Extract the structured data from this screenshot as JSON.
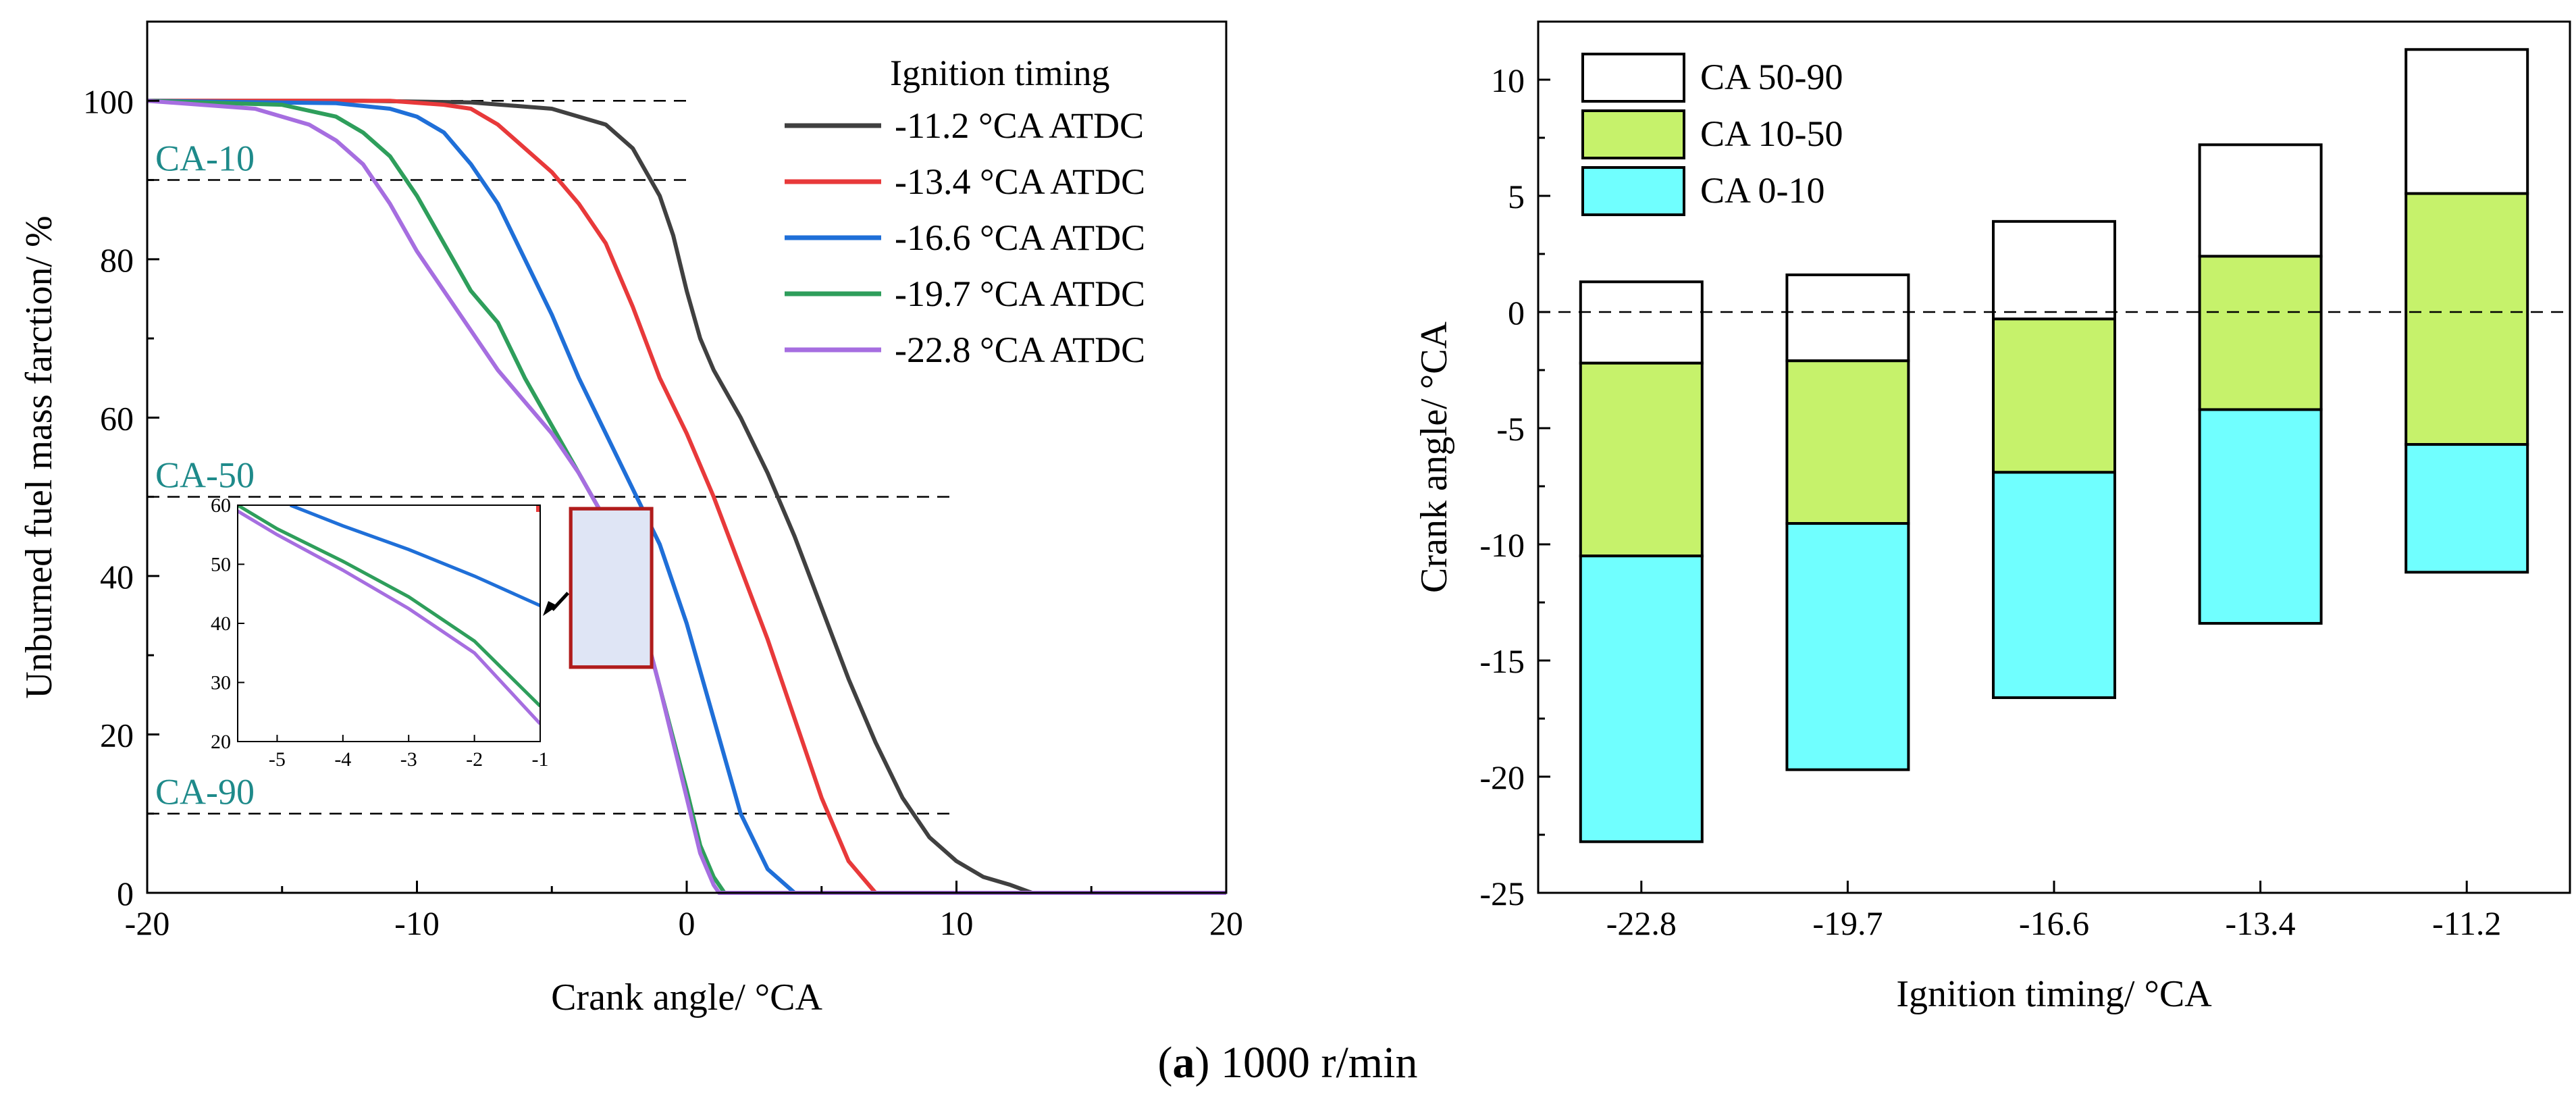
{
  "caption": {
    "label": "a",
    "text": " 1000 r/min"
  },
  "colors": {
    "s11_2": "#404040",
    "s13_4": "#e8393a",
    "s16_6": "#1f6fd8",
    "s19_7": "#2e9e5b",
    "s22_8": "#a66ee0",
    "annot": "#1e8a8a",
    "zoombox": "#b01c1c",
    "zoomfill": "#dfe5f5",
    "band_90": "#ffffff",
    "band_50": "#c6f26b",
    "band_10": "#70ffff"
  },
  "chart_data": [
    {
      "type": "line",
      "title": "",
      "xlabel": "Crank angle/ °CA",
      "ylabel": "Unburned fuel mass farction/ %",
      "xlim": [
        -20,
        20
      ],
      "ylim": [
        0,
        110
      ],
      "xticks": [
        -20,
        -10,
        0,
        10,
        20
      ],
      "yticks": [
        0,
        20,
        40,
        60,
        80,
        100
      ],
      "legend_title": "Ignition timing",
      "legend_position": "top-right",
      "reference_lines": [
        {
          "label": "",
          "y": 100
        },
        {
          "label": "CA-10",
          "y": 90
        },
        {
          "label": "CA-50",
          "y": 50
        },
        {
          "label": "CA-90",
          "y": 10
        }
      ],
      "series": [
        {
          "name": "-11.2 °CA ATDC",
          "color_key": "s11_2",
          "x": [
            -20,
            -12,
            -8,
            -5,
            -4,
            -3,
            -2,
            -1,
            -0.5,
            0,
            0.5,
            1,
            2,
            3,
            4,
            5,
            6,
            7,
            8,
            9,
            10,
            11,
            12,
            12.8,
            20
          ],
          "y": [
            100,
            100,
            99.8,
            99,
            98,
            97,
            94,
            88,
            83,
            76,
            70,
            66,
            60,
            53,
            45,
            36,
            27,
            19,
            12,
            7,
            4,
            2,
            1,
            0,
            0
          ]
        },
        {
          "name": "-13.4 °CA ATDC",
          "color_key": "s13_4",
          "x": [
            -20,
            -11,
            -9,
            -8,
            -7,
            -6,
            -5,
            -4,
            -3,
            -2,
            -1,
            0,
            1,
            2,
            3,
            4,
            5,
            6,
            7,
            20
          ],
          "y": [
            100,
            100,
            99.5,
            99,
            97,
            94,
            91,
            87,
            82,
            74,
            65,
            58,
            50,
            41,
            32,
            22,
            12,
            4,
            0,
            0
          ]
        },
        {
          "name": "-16.6 °CA ATDC",
          "color_key": "s16_6",
          "x": [
            -20,
            -13,
            -11,
            -10,
            -9,
            -8,
            -7,
            -6,
            -5,
            -4,
            -3,
            -2,
            -1,
            0,
            1,
            2,
            3,
            4,
            20
          ],
          "y": [
            100,
            99.7,
            99,
            98,
            96,
            92,
            87,
            80,
            73,
            65,
            58,
            51,
            44,
            34,
            22,
            10,
            3,
            0,
            0
          ]
        },
        {
          "name": "-19.7 °CA ATDC",
          "color_key": "s19_7",
          "x": [
            -20,
            -15,
            -13,
            -12,
            -11,
            -10,
            -9,
            -8,
            -7,
            -6,
            -5,
            -4,
            -3,
            -2,
            -1,
            0,
            0.5,
            1,
            1.4,
            20
          ],
          "y": [
            100,
            99.5,
            98,
            96,
            93,
            88,
            82,
            76,
            72,
            65,
            59,
            53,
            47,
            39,
            26,
            13,
            6,
            2,
            0,
            0
          ]
        },
        {
          "name": "-22.8 °CA ATDC",
          "color_key": "s22_8",
          "x": [
            -20,
            -16,
            -14,
            -13,
            -12,
            -11,
            -10,
            -9,
            -8,
            -7,
            -6,
            -5,
            -4,
            -3,
            -2,
            -1,
            0,
            0.5,
            1,
            1.2,
            20
          ],
          "y": [
            100,
            99,
            97,
            95,
            92,
            87,
            81,
            76,
            71,
            66,
            62,
            58,
            53,
            47,
            39,
            26,
            12,
            5,
            1,
            0,
            0
          ]
        }
      ],
      "inset": {
        "xlim": [
          -5.6,
          -1
        ],
        "ylim": [
          20,
          60
        ],
        "xticks": [
          -5,
          -4,
          -3,
          -2,
          -1
        ],
        "yticks": [
          20,
          30,
          40,
          50,
          60
        ],
        "series": [
          {
            "color_key": "s16_6",
            "x": [
              -4.8,
              -4,
              -3,
              -2,
              -1
            ],
            "y": [
              60,
              56.5,
              52.5,
              48,
              43
            ]
          },
          {
            "color_key": "s19_7",
            "x": [
              -5.6,
              -5,
              -4,
              -3,
              -2,
              -1
            ],
            "y": [
              60,
              56,
              50.5,
              44.5,
              37,
              26
            ]
          },
          {
            "color_key": "s22_8",
            "x": [
              -5.6,
              -5,
              -4,
              -3,
              -2,
              -1
            ],
            "y": [
              59,
              55,
              49,
              42.5,
              35,
              23
            ]
          }
        ]
      }
    },
    {
      "type": "bar",
      "stacked": "floating",
      "xlabel": "Ignition timing/ °CA",
      "ylabel": "Crank angle/ °CA",
      "ylim": [
        -25,
        12.5
      ],
      "yticks": [
        -25,
        -20,
        -15,
        -10,
        -5,
        0,
        5,
        10
      ],
      "categories": [
        "-22.8",
        "-19.7",
        "-16.6",
        "-13.4",
        "-11.2"
      ],
      "reference_line_y": 0,
      "legend_position": "top-left",
      "series": [
        {
          "name": "CA 50-90",
          "color_key": "band_90",
          "low": [
            -2.2,
            -2.1,
            -0.3,
            2.4,
            5.1
          ],
          "high": [
            1.3,
            1.6,
            3.9,
            7.2,
            11.3
          ]
        },
        {
          "name": "CA 10-50",
          "color_key": "band_50",
          "low": [
            -10.5,
            -9.1,
            -6.9,
            -4.2,
            -5.7
          ],
          "high": [
            -2.2,
            -2.1,
            -0.3,
            2.4,
            5.1
          ]
        },
        {
          "name": "CA  0-10",
          "color_key": "band_10",
          "low": [
            -22.8,
            -19.7,
            -16.6,
            -13.4,
            -11.2
          ],
          "high": [
            -10.5,
            -9.1,
            -6.9,
            -4.2,
            -5.7
          ]
        }
      ]
    }
  ]
}
